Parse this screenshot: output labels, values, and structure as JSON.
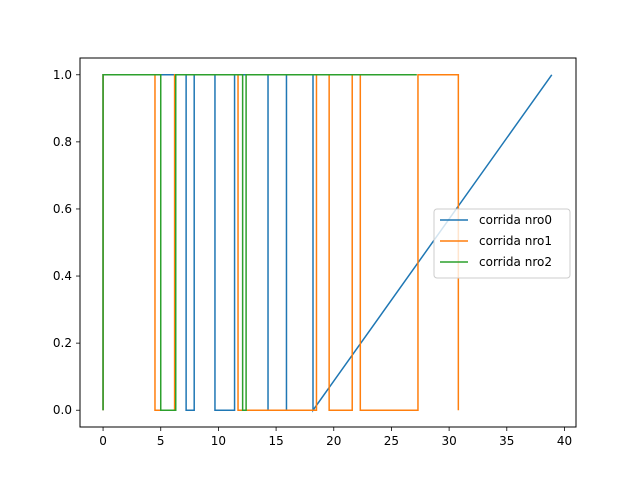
{
  "chart_data": {
    "type": "line",
    "step": true,
    "xlim": [
      -2,
      41
    ],
    "ylim": [
      -0.05,
      1.05
    ],
    "xticks": [
      0,
      5,
      10,
      15,
      20,
      25,
      30,
      35,
      40
    ],
    "yticks": [
      0.0,
      0.2,
      0.4,
      0.6,
      0.8,
      1.0
    ],
    "xtick_labels": [
      "0",
      "5",
      "10",
      "15",
      "20",
      "25",
      "30",
      "35",
      "40"
    ],
    "ytick_labels": [
      "0.0",
      "0.2",
      "0.4",
      "0.6",
      "0.8",
      "1.0"
    ],
    "grid": false,
    "legend_position": "center-right",
    "series": [
      {
        "name": "corrida nro0",
        "color": "#1f77b4",
        "x": [
          0,
          0,
          7.2,
          7.2,
          7.9,
          7.9,
          9.7,
          9.7,
          11.4,
          11.4,
          14.3,
          14.3,
          15.9,
          15.9,
          18.2,
          18.2,
          38.9
        ],
        "y": [
          0,
          1,
          1,
          0,
          0,
          1,
          1,
          0,
          0,
          1,
          1,
          0,
          0,
          1,
          1,
          0,
          1
        ]
      },
      {
        "name": "corrida nro1",
        "color": "#ff7f0e",
        "x": [
          0,
          0,
          4.5,
          4.5,
          6.2,
          6.2,
          11.7,
          11.7,
          18.5,
          18.5,
          19.6,
          19.6,
          21.6,
          21.6,
          22.3,
          22.3,
          27.3,
          27.3,
          30.8,
          30.8
        ],
        "y": [
          0,
          1,
          1,
          0,
          0,
          1,
          1,
          0,
          0,
          1,
          1,
          0,
          0,
          1,
          1,
          0,
          0,
          1,
          1,
          0
        ]
      },
      {
        "name": "corrida nro2",
        "color": "#2ca02c",
        "x": [
          0,
          0,
          5.0,
          5.0,
          6.3,
          6.3,
          12.1,
          12.1,
          12.4,
          12.4,
          27.2
        ],
        "y": [
          0,
          1,
          1,
          0,
          0,
          1,
          1,
          0,
          0,
          1,
          1
        ]
      }
    ]
  }
}
